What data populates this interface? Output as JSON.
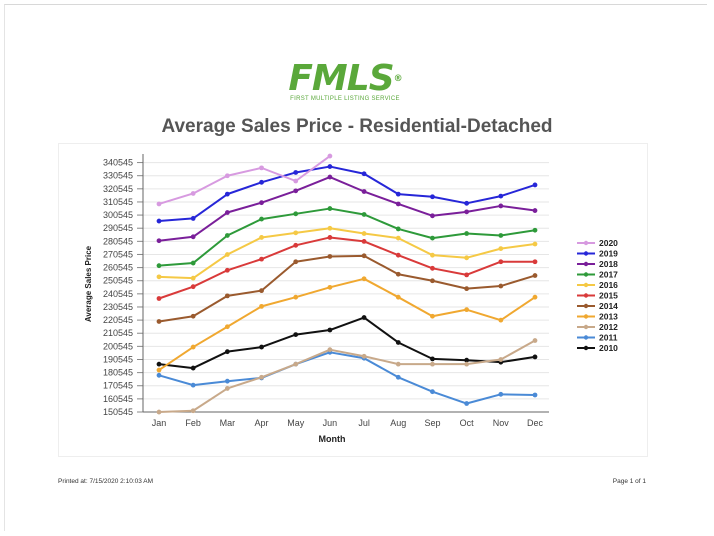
{
  "logo": {
    "mark": "FMLS",
    "registered": "®",
    "subtitle": "FIRST MULTIPLE LISTING SERVICE"
  },
  "title": "Average Sales Price - Residential-Detached",
  "footer": {
    "printed_label": "Printed at:",
    "printed_value": "7/15/2020 2:10:03 AM",
    "page": "Page 1 of 1"
  },
  "chart_data": {
    "type": "line",
    "xlabel": "Month",
    "ylabel": "Average Sales Price",
    "categories": [
      "Jan",
      "Feb",
      "Mar",
      "Apr",
      "May",
      "Jun",
      "Jul",
      "Aug",
      "Sep",
      "Oct",
      "Nov",
      "Dec"
    ],
    "ylim": [
      150545,
      345545
    ],
    "yticks": [
      150545,
      160545,
      170545,
      180545,
      190545,
      200545,
      210545,
      220545,
      230545,
      240545,
      250545,
      260545,
      270545,
      280545,
      290545,
      300545,
      310545,
      320545,
      330545,
      340545
    ],
    "grid": true,
    "legend_position": "right",
    "series": [
      {
        "name": "2020",
        "color": "#d79ae0",
        "values": [
          309000,
          317000,
          330500,
          336500,
          326500,
          345500,
          null,
          null,
          null,
          null,
          null,
          null
        ]
      },
      {
        "name": "2019",
        "color": "#2626d8",
        "values": [
          296000,
          298000,
          316500,
          325500,
          333000,
          337500,
          332000,
          316500,
          314500,
          309500,
          315000,
          323500
        ]
      },
      {
        "name": "2018",
        "color": "#7a1f9a",
        "values": [
          281000,
          284000,
          302500,
          310000,
          319000,
          329500,
          318500,
          309000,
          300000,
          303000,
          307500,
          304000
        ]
      },
      {
        "name": "2017",
        "color": "#2e9a3a",
        "values": [
          262000,
          264000,
          285000,
          297500,
          301500,
          305500,
          301000,
          290000,
          283000,
          286500,
          285000,
          289000
        ]
      },
      {
        "name": "2016",
        "color": "#f5c945",
        "values": [
          253500,
          252500,
          270500,
          283500,
          287000,
          290500,
          286500,
          283000,
          270000,
          268000,
          275000,
          278500
        ]
      },
      {
        "name": "2015",
        "color": "#d93a3a",
        "values": [
          237000,
          246000,
          258500,
          267000,
          277500,
          283500,
          280500,
          270000,
          260000,
          255000,
          265000,
          265000
        ]
      },
      {
        "name": "2014",
        "color": "#9a5a2e",
        "values": [
          219500,
          223500,
          239000,
          243000,
          265000,
          269000,
          269500,
          255500,
          250500,
          244500,
          246500,
          254500
        ]
      },
      {
        "name": "2013",
        "color": "#f0a830",
        "values": [
          182500,
          200000,
          215500,
          231000,
          238000,
          245500,
          252000,
          238000,
          223500,
          228500,
          220500,
          238000
        ]
      },
      {
        "name": "2012",
        "color": "#c8a98a",
        "values": [
          150500,
          151500,
          168500,
          177000,
          187000,
          198000,
          193000,
          187000,
          187000,
          187000,
          190500,
          205000
        ]
      },
      {
        "name": "2011",
        "color": "#4a8ad6",
        "values": [
          178500,
          171000,
          174000,
          176500,
          187000,
          196000,
          191500,
          177000,
          166000,
          157000,
          164000,
          163500
        ]
      },
      {
        "name": "2010",
        "color": "#111111",
        "values": [
          187000,
          184000,
          196500,
          200000,
          209500,
          213000,
          222500,
          203500,
          191000,
          190000,
          188500,
          192500
        ]
      }
    ]
  }
}
